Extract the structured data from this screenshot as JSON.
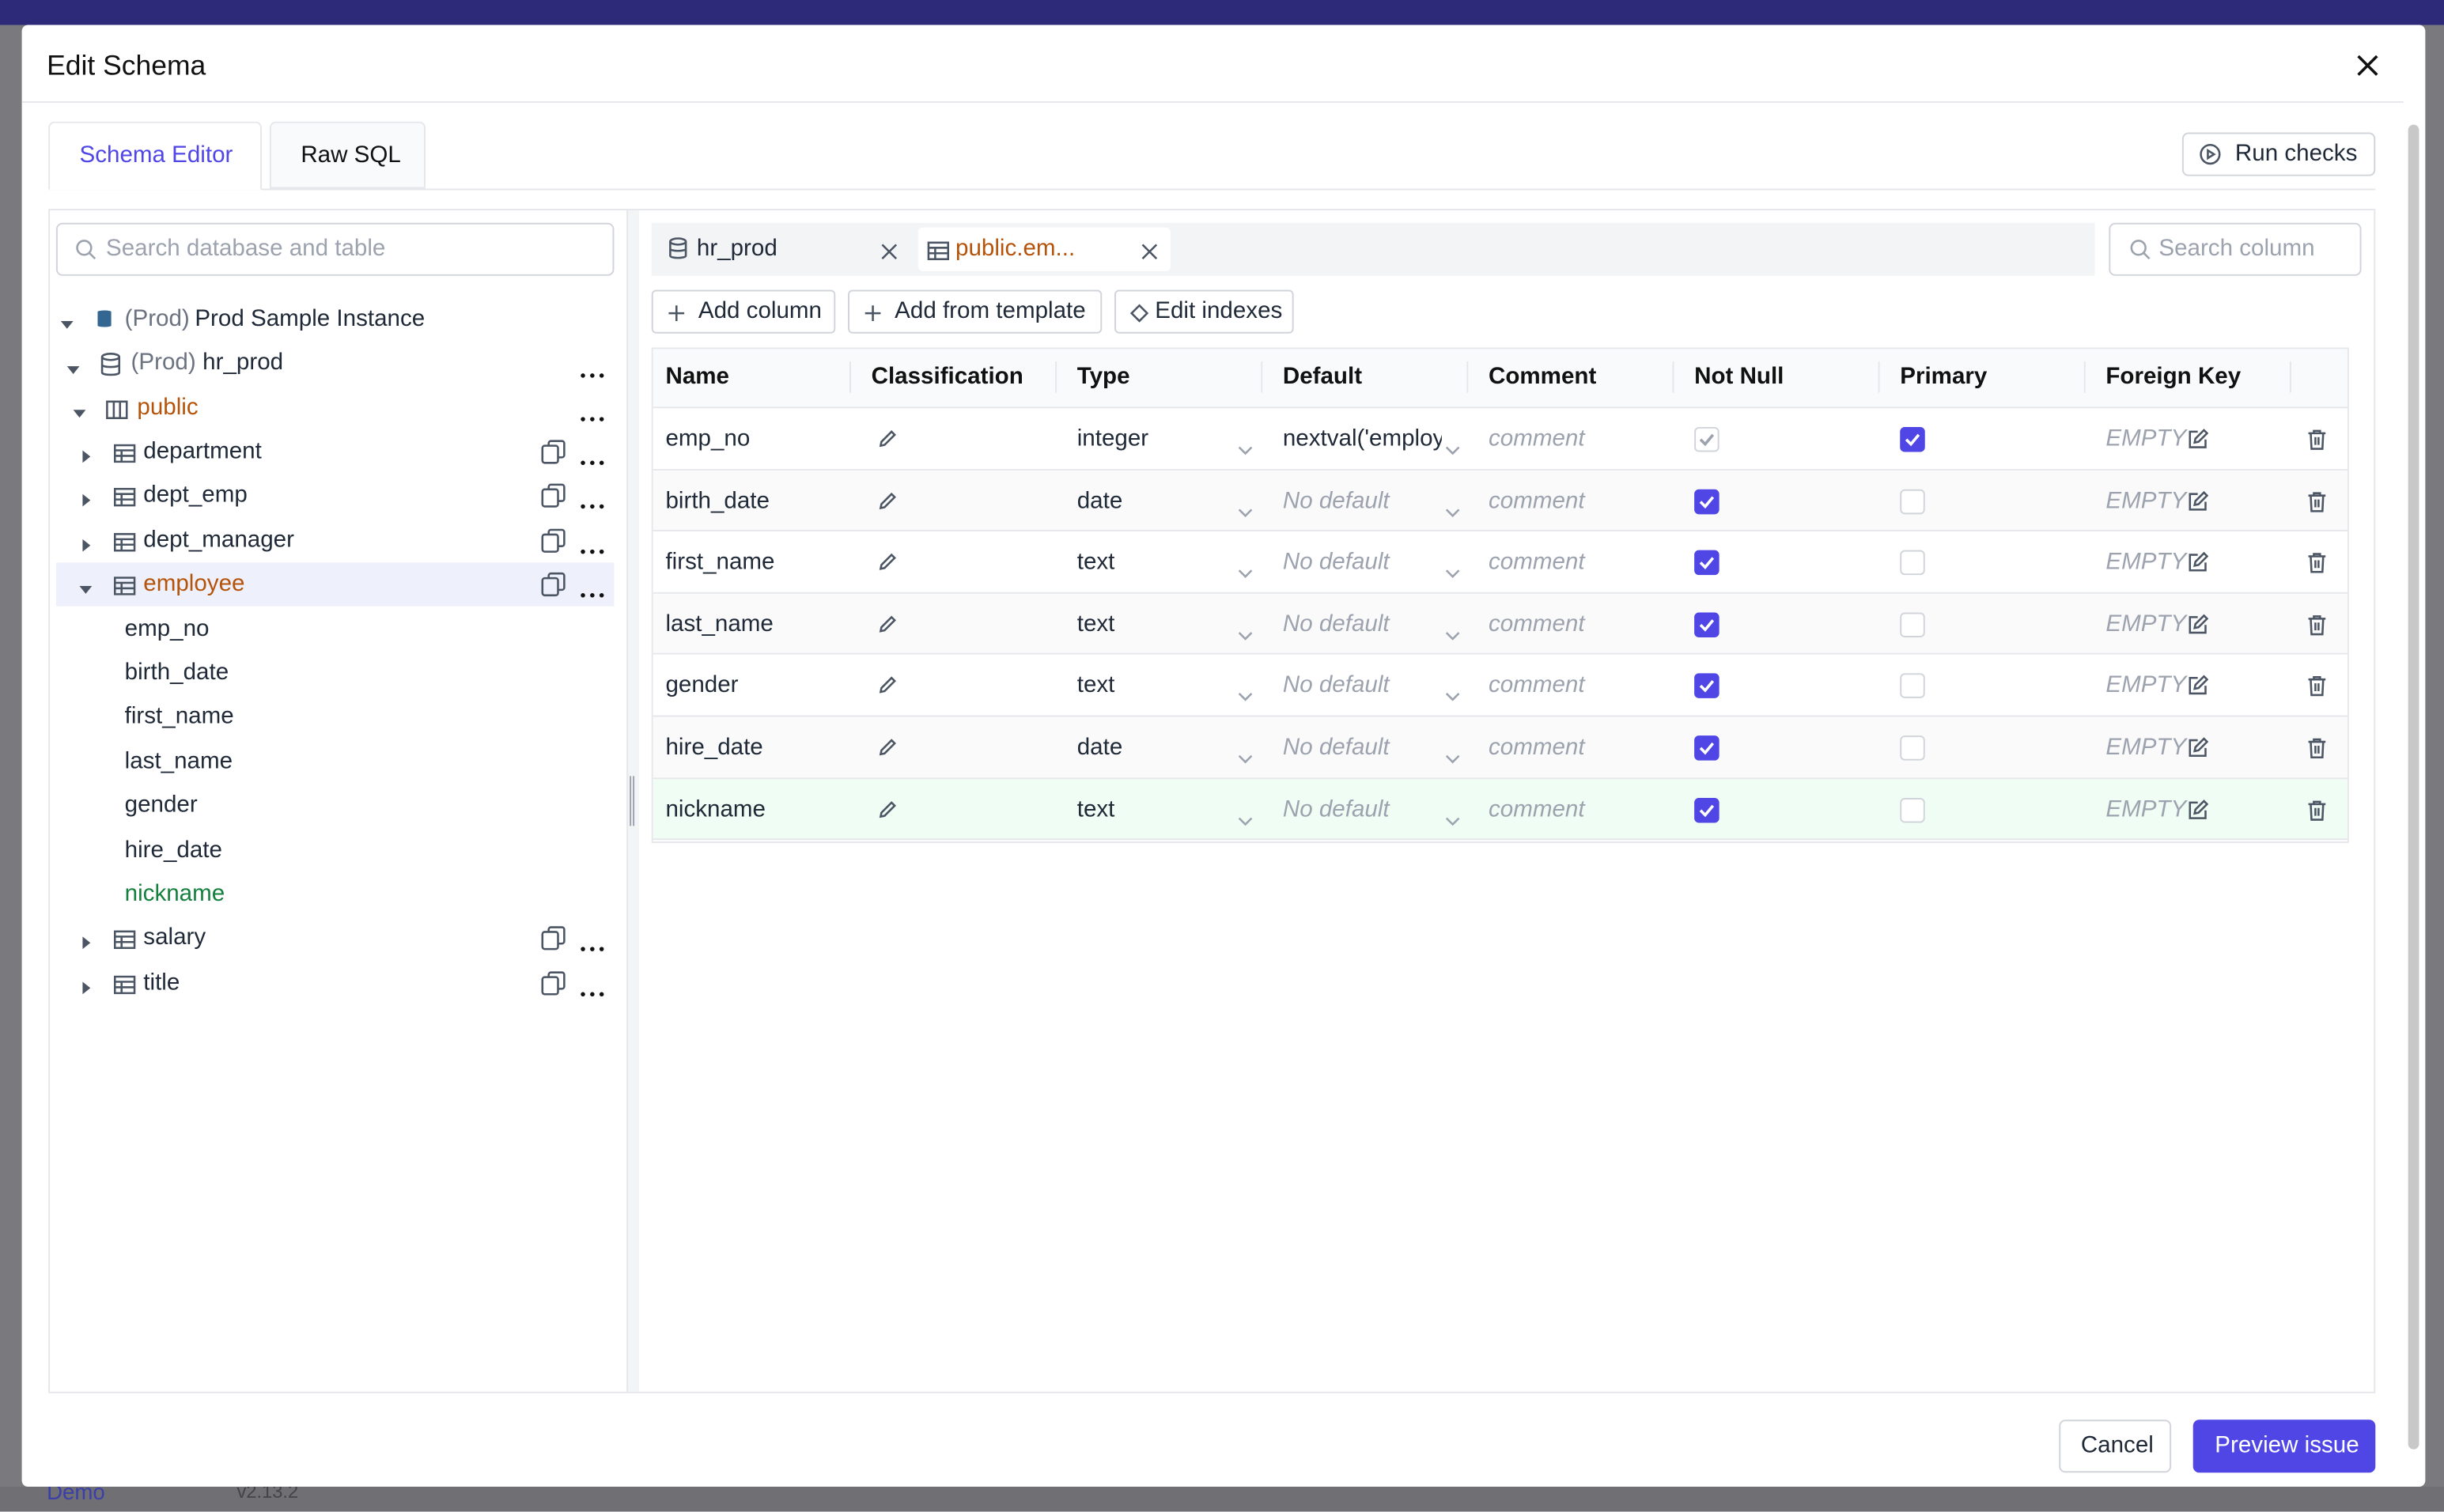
{
  "background": {
    "app_name": "Demo",
    "version": "v2.13.2"
  },
  "modal": {
    "title": "Edit Schema",
    "tabs": [
      "Schema Editor",
      "Raw SQL"
    ],
    "run_checks": "Run checks",
    "cancel": "Cancel",
    "preview": "Preview issue"
  },
  "sidebar": {
    "search_placeholder": "Search database and table",
    "instance": {
      "env": "(Prod)",
      "name": "Prod Sample Instance"
    },
    "database": {
      "env": "(Prod)",
      "name": "hr_prod"
    },
    "schema": "public",
    "tables": [
      "department",
      "dept_emp",
      "dept_manager",
      "employee",
      "salary",
      "title"
    ]
  },
  "editor": {
    "tabs": [
      "hr_prod",
      "public.em..."
    ],
    "search_placeholder": "Search column",
    "buttons": [
      "Add column",
      "Add from template",
      "Edit indexes"
    ],
    "headers": [
      "Name",
      "Classification",
      "Type",
      "Default",
      "Comment",
      "Not Null",
      "Primary",
      "Foreign Key"
    ],
    "default_placeholder": "No default",
    "comment_placeholder": "comment",
    "fk_empty": "EMPTY",
    "rows": [
      {
        "name": "emp_no",
        "type": "integer",
        "default": "nextval('employ",
        "not_null": true,
        "primary": true,
        "locked": true,
        "new": false
      },
      {
        "name": "birth_date",
        "type": "date",
        "default": null,
        "not_null": true,
        "primary": false,
        "locked": false,
        "new": false
      },
      {
        "name": "first_name",
        "type": "text",
        "default": null,
        "not_null": true,
        "primary": false,
        "locked": false,
        "new": false
      },
      {
        "name": "last_name",
        "type": "text",
        "default": null,
        "not_null": true,
        "primary": false,
        "locked": false,
        "new": false
      },
      {
        "name": "gender",
        "type": "text",
        "default": null,
        "not_null": true,
        "primary": false,
        "locked": false,
        "new": false
      },
      {
        "name": "hire_date",
        "type": "date",
        "default": null,
        "not_null": true,
        "primary": false,
        "locked": false,
        "new": false
      },
      {
        "name": "nickname",
        "type": "text",
        "default": null,
        "not_null": true,
        "primary": false,
        "locked": false,
        "new": true
      }
    ]
  }
}
